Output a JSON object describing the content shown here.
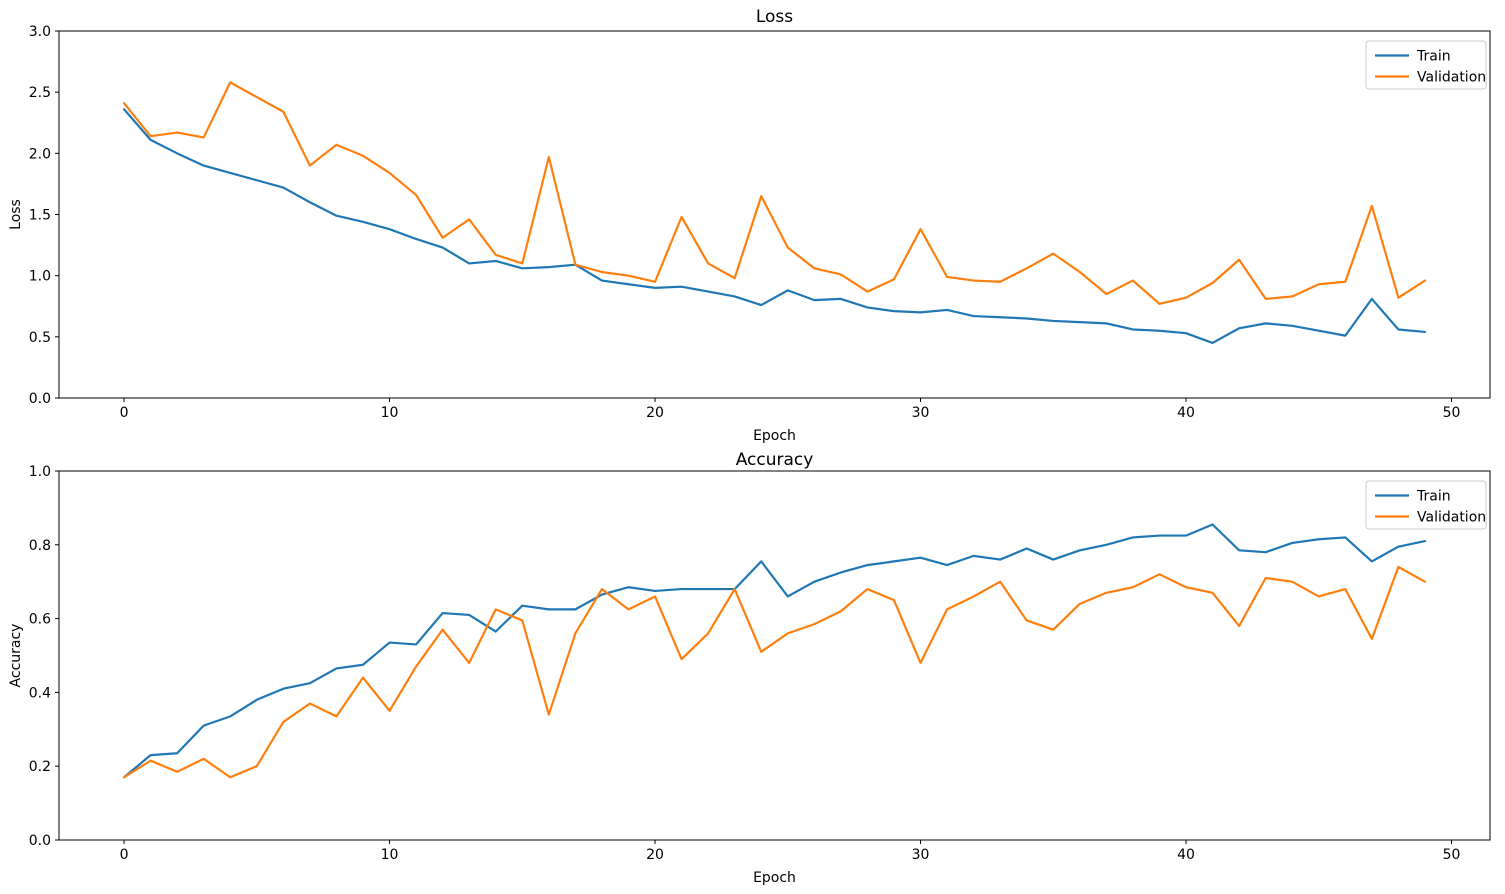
{
  "figure": {
    "background": "#ffffff",
    "series_colors": {
      "train": "#1f77b4",
      "validation": "#ff7f0e"
    }
  },
  "chart_data": [
    {
      "type": "line",
      "title": "Loss",
      "xlabel": "Epoch",
      "ylabel": "Loss",
      "xlim": [
        -2.45,
        51.45
      ],
      "ylim": [
        0,
        3.0
      ],
      "grid": false,
      "legend": {
        "position": "upper right",
        "entries": [
          {
            "name": "Train",
            "color": "#1f77b4"
          },
          {
            "name": "Validation",
            "color": "#ff7f0e"
          }
        ]
      },
      "x_ticks": [
        {
          "v": 0,
          "label": "0"
        },
        {
          "v": 10,
          "label": "10"
        },
        {
          "v": 20,
          "label": "20"
        },
        {
          "v": 30,
          "label": "30"
        },
        {
          "v": 40,
          "label": "40"
        },
        {
          "v": 50,
          "label": "50"
        }
      ],
      "y_ticks": [
        {
          "v": 0.0,
          "label": "0.0"
        },
        {
          "v": 0.5,
          "label": "0.5"
        },
        {
          "v": 1.0,
          "label": "1.0"
        },
        {
          "v": 1.5,
          "label": "1.5"
        },
        {
          "v": 2.0,
          "label": "2.0"
        },
        {
          "v": 2.5,
          "label": "2.5"
        },
        {
          "v": 3.0,
          "label": "3.0"
        }
      ],
      "x": [
        0,
        1,
        2,
        3,
        4,
        5,
        6,
        7,
        8,
        9,
        10,
        11,
        12,
        13,
        14,
        15,
        16,
        17,
        18,
        19,
        20,
        21,
        22,
        23,
        24,
        25,
        26,
        27,
        28,
        29,
        30,
        31,
        32,
        33,
        34,
        35,
        36,
        37,
        38,
        39,
        40,
        41,
        42,
        43,
        44,
        45,
        46,
        47,
        48,
        49
      ],
      "series": [
        {
          "name": "Train",
          "color": "#1f77b4",
          "values": [
            2.36,
            2.11,
            2.0,
            1.9,
            1.84,
            1.78,
            1.72,
            1.6,
            1.49,
            1.44,
            1.38,
            1.3,
            1.23,
            1.1,
            1.12,
            1.06,
            1.07,
            1.09,
            0.96,
            0.93,
            0.9,
            0.91,
            0.87,
            0.83,
            0.76,
            0.88,
            0.8,
            0.81,
            0.74,
            0.71,
            0.7,
            0.72,
            0.67,
            0.66,
            0.65,
            0.63,
            0.62,
            0.61,
            0.56,
            0.55,
            0.53,
            0.45,
            0.57,
            0.61,
            0.59,
            0.55,
            0.51,
            0.81,
            0.56,
            0.54
          ]
        },
        {
          "name": "Validation",
          "color": "#ff7f0e",
          "values": [
            2.41,
            2.14,
            2.17,
            2.13,
            2.58,
            2.46,
            2.34,
            1.9,
            2.07,
            1.98,
            1.84,
            1.66,
            1.31,
            1.46,
            1.17,
            1.1,
            1.97,
            1.09,
            1.03,
            1.0,
            0.95,
            1.48,
            1.1,
            0.98,
            1.65,
            1.23,
            1.06,
            1.01,
            0.87,
            0.97,
            1.38,
            0.99,
            0.96,
            0.95,
            1.06,
            1.18,
            1.03,
            0.85,
            0.96,
            0.77,
            0.82,
            0.94,
            1.13,
            0.81,
            0.83,
            0.93,
            0.95,
            1.57,
            0.82,
            0.96
          ]
        }
      ]
    },
    {
      "type": "line",
      "title": "Accuracy",
      "xlabel": "Epoch",
      "ylabel": "Accuracy",
      "xlim": [
        -2.45,
        51.45
      ],
      "ylim": [
        0,
        1.0
      ],
      "grid": false,
      "legend": {
        "position": "upper right",
        "entries": [
          {
            "name": "Train",
            "color": "#1f77b4"
          },
          {
            "name": "Validation",
            "color": "#ff7f0e"
          }
        ]
      },
      "x_ticks": [
        {
          "v": 0,
          "label": "0"
        },
        {
          "v": 10,
          "label": "10"
        },
        {
          "v": 20,
          "label": "20"
        },
        {
          "v": 30,
          "label": "30"
        },
        {
          "v": 40,
          "label": "40"
        },
        {
          "v": 50,
          "label": "50"
        }
      ],
      "y_ticks": [
        {
          "v": 0.0,
          "label": "0.0"
        },
        {
          "v": 0.2,
          "label": "0.2"
        },
        {
          "v": 0.4,
          "label": "0.4"
        },
        {
          "v": 0.6,
          "label": "0.6"
        },
        {
          "v": 0.8,
          "label": "0.8"
        },
        {
          "v": 1.0,
          "label": "1.0"
        }
      ],
      "x": [
        0,
        1,
        2,
        3,
        4,
        5,
        6,
        7,
        8,
        9,
        10,
        11,
        12,
        13,
        14,
        15,
        16,
        17,
        18,
        19,
        20,
        21,
        22,
        23,
        24,
        25,
        26,
        27,
        28,
        29,
        30,
        31,
        32,
        33,
        34,
        35,
        36,
        37,
        38,
        39,
        40,
        41,
        42,
        43,
        44,
        45,
        46,
        47,
        48,
        49
      ],
      "series": [
        {
          "name": "Train",
          "color": "#1f77b4",
          "values": [
            0.17,
            0.23,
            0.235,
            0.31,
            0.335,
            0.38,
            0.41,
            0.425,
            0.465,
            0.475,
            0.535,
            0.53,
            0.615,
            0.61,
            0.565,
            0.635,
            0.625,
            0.625,
            0.665,
            0.685,
            0.675,
            0.68,
            0.68,
            0.68,
            0.755,
            0.66,
            0.7,
            0.725,
            0.745,
            0.755,
            0.765,
            0.745,
            0.77,
            0.76,
            0.79,
            0.76,
            0.785,
            0.8,
            0.82,
            0.825,
            0.825,
            0.855,
            0.785,
            0.78,
            0.805,
            0.815,
            0.82,
            0.755,
            0.795,
            0.81
          ]
        },
        {
          "name": "Validation",
          "color": "#ff7f0e",
          "values": [
            0.17,
            0.215,
            0.185,
            0.22,
            0.17,
            0.2,
            0.32,
            0.37,
            0.335,
            0.44,
            0.35,
            0.47,
            0.57,
            0.48,
            0.625,
            0.595,
            0.34,
            0.56,
            0.68,
            0.625,
            0.66,
            0.49,
            0.56,
            0.68,
            0.51,
            0.56,
            0.585,
            0.62,
            0.68,
            0.65,
            0.48,
            0.625,
            0.66,
            0.7,
            0.595,
            0.57,
            0.64,
            0.67,
            0.685,
            0.72,
            0.685,
            0.67,
            0.58,
            0.71,
            0.7,
            0.66,
            0.68,
            0.545,
            0.74,
            0.7
          ]
        }
      ]
    }
  ]
}
